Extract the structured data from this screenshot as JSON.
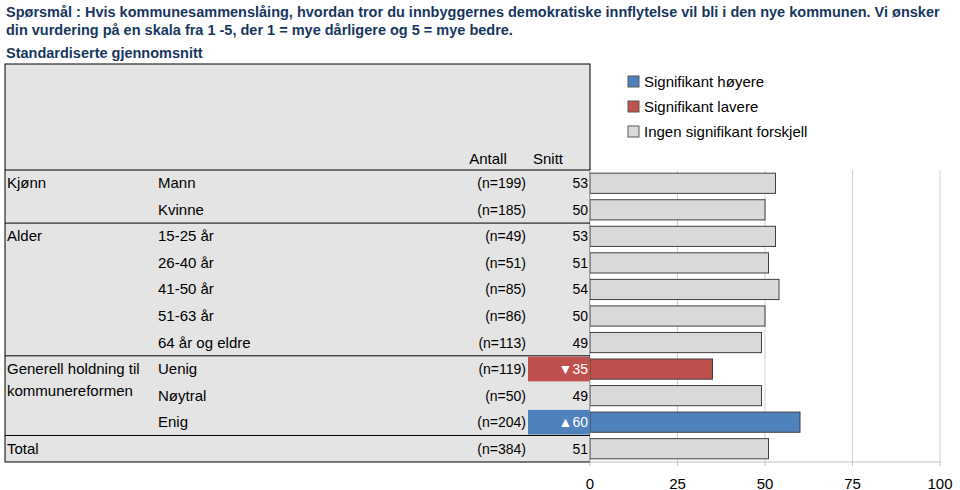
{
  "chart_data": {
    "type": "bar",
    "orientation": "horizontal",
    "title": "Spørsmål : Hvis kommunesammenslåing, hvordan tror du innbyggernes demokratiske innflytelse vil bli i den nye kommunen. Vi ønsker din vurdering på en skala fra 1 -5, der 1 = mye dårligere og 5 = mye bedre.",
    "subtitle": "Standardiserte gjennomsnitt",
    "column_headers": [
      "Antall",
      "Snitt"
    ],
    "group_labels": [
      "Kjønn",
      null,
      "Alder",
      null,
      null,
      null,
      null,
      "Generell holdning til kommunereformen",
      null,
      null,
      "Total"
    ],
    "categories": [
      "Mann",
      "Kvinne",
      "15-25 år",
      "26-40 år",
      "41-50 år",
      "51-63 år",
      "64 år og eldre",
      "Uenig",
      "Nøytral",
      "Enig",
      null
    ],
    "count_labels": [
      "(n=199)",
      "(n=185)",
      "(n=49)",
      "(n=51)",
      "(n=85)",
      "(n=86)",
      "(n=113)",
      "(n=119)",
      "(n=50)",
      "(n=204)",
      "(n=384)"
    ],
    "values": [
      53,
      50,
      53,
      51,
      54,
      50,
      49,
      35,
      49,
      60,
      51
    ],
    "value_labels": [
      "53",
      "50",
      "53",
      "51",
      "54",
      "50",
      "49",
      "▼35",
      "49",
      "▲60",
      "51"
    ],
    "colors": [
      "#d9d9d9",
      "#d9d9d9",
      "#d9d9d9",
      "#d9d9d9",
      "#d9d9d9",
      "#d9d9d9",
      "#d9d9d9",
      "#c0504d",
      "#d9d9d9",
      "#4f81bd",
      "#d9d9d9"
    ],
    "legend_items": [
      {
        "label": "Signifikant høyere",
        "color": "#4f81bd"
      },
      {
        "label": "Signifikant lavere",
        "color": "#c0504d"
      },
      {
        "label": "Ingen signifikant forskjell",
        "color": "#d9d9d9"
      }
    ],
    "legend": "top-right",
    "data_labels": true,
    "grid": true,
    "xlim": [
      0,
      100
    ],
    "xticks": [
      0,
      25,
      50,
      75,
      100
    ]
  }
}
